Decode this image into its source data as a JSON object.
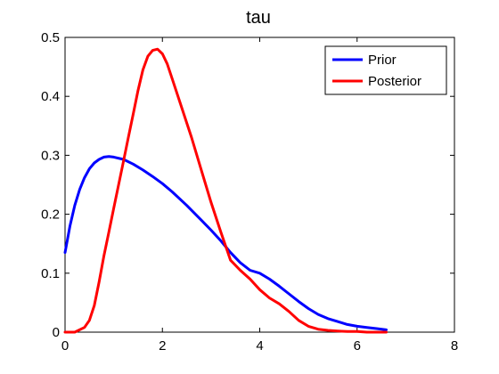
{
  "chart_data": {
    "type": "line",
    "title": "tau",
    "xlabel": "",
    "ylabel": "",
    "xlim": [
      0,
      8
    ],
    "ylim": [
      0,
      0.5
    ],
    "xticks": [
      0,
      2,
      4,
      6,
      8
    ],
    "yticks": [
      0,
      0.1,
      0.2,
      0.3,
      0.4,
      0.5
    ],
    "xtick_labels": [
      "0",
      "2",
      "4",
      "6",
      "8"
    ],
    "ytick_labels": [
      "0",
      "0.1",
      "0.2",
      "0.3",
      "0.4",
      "0.5"
    ],
    "grid": false,
    "legend_position": "top-right",
    "series": [
      {
        "name": "Prior",
        "color": "#0000ff",
        "x": [
          0,
          0.1,
          0.2,
          0.3,
          0.4,
          0.5,
          0.6,
          0.7,
          0.8,
          0.9,
          1.0,
          1.2,
          1.4,
          1.6,
          1.8,
          2.0,
          2.2,
          2.5,
          2.8,
          3.0,
          3.2,
          3.4,
          3.6,
          3.8,
          4.0,
          4.2,
          4.4,
          4.6,
          4.8,
          5.0,
          5.2,
          5.4,
          5.6,
          5.8,
          6.0,
          6.2,
          6.4,
          6.6
        ],
        "y": [
          0.135,
          0.18,
          0.215,
          0.242,
          0.262,
          0.277,
          0.287,
          0.293,
          0.297,
          0.298,
          0.297,
          0.293,
          0.285,
          0.275,
          0.264,
          0.252,
          0.238,
          0.215,
          0.19,
          0.173,
          0.155,
          0.135,
          0.118,
          0.105,
          0.1,
          0.09,
          0.078,
          0.065,
          0.052,
          0.04,
          0.03,
          0.023,
          0.018,
          0.013,
          0.01,
          0.008,
          0.006,
          0.004
        ]
      },
      {
        "name": "Posterior",
        "color": "#ff0000",
        "x": [
          0,
          0.2,
          0.4,
          0.5,
          0.6,
          0.7,
          0.8,
          0.9,
          1.0,
          1.1,
          1.2,
          1.3,
          1.4,
          1.5,
          1.6,
          1.7,
          1.8,
          1.9,
          2.0,
          2.1,
          2.2,
          2.4,
          2.6,
          2.8,
          3.0,
          3.2,
          3.4,
          3.6,
          3.8,
          4.0,
          4.2,
          4.4,
          4.6,
          4.8,
          5.0,
          5.2,
          5.4,
          5.6,
          5.8,
          6.0,
          6.2,
          6.4,
          6.6
        ],
        "y": [
          0.0,
          0.0,
          0.008,
          0.02,
          0.045,
          0.085,
          0.13,
          0.17,
          0.21,
          0.25,
          0.29,
          0.33,
          0.37,
          0.41,
          0.445,
          0.468,
          0.478,
          0.48,
          0.472,
          0.455,
          0.43,
          0.38,
          0.33,
          0.275,
          0.22,
          0.17,
          0.122,
          0.105,
          0.09,
          0.072,
          0.058,
          0.048,
          0.035,
          0.02,
          0.01,
          0.005,
          0.003,
          0.002,
          0.001,
          0.001,
          0.0,
          0.0,
          0.0
        ]
      }
    ]
  }
}
